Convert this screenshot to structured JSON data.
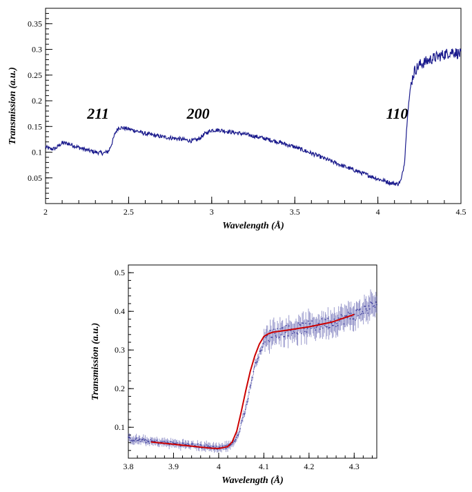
{
  "colors": {
    "data_series": "#1a1a8c",
    "fit_curve": "#cc0000",
    "axis": "#000000"
  },
  "chart_data": [
    {
      "type": "line",
      "title": "",
      "xlabel": "Wavelength (Å)",
      "ylabel": "Transmission (a.u.)",
      "xlim": [
        2.0,
        4.5
      ],
      "ylim": [
        0.0,
        0.38
      ],
      "x_ticks": [
        2,
        2.5,
        3,
        3.5,
        4,
        4.5
      ],
      "x_tick_labels": [
        "2",
        "2.5",
        "3",
        "3.5",
        "4",
        "4.5"
      ],
      "y_ticks": [
        0.05,
        0.1,
        0.15,
        0.2,
        0.25,
        0.3,
        0.35
      ],
      "y_tick_labels": [
        "0.05",
        "0.1",
        "0.15",
        "0.2",
        "0.25",
        "0.3",
        "0.35"
      ],
      "grid": false,
      "annotations": [
        {
          "text": "211",
          "x": 2.25,
          "y": 0.165
        },
        {
          "text": "200",
          "x": 2.85,
          "y": 0.165
        },
        {
          "text": "110",
          "x": 4.05,
          "y": 0.165
        }
      ],
      "series": [
        {
          "style": "noisy-line",
          "points": [
            [
              2.0,
              0.11
            ],
            [
              2.03,
              0.106
            ],
            [
              2.06,
              0.107
            ],
            [
              2.08,
              0.113
            ],
            [
              2.1,
              0.118
            ],
            [
              2.13,
              0.117
            ],
            [
              2.16,
              0.114
            ],
            [
              2.2,
              0.109
            ],
            [
              2.25,
              0.104
            ],
            [
              2.3,
              0.1
            ],
            [
              2.35,
              0.098
            ],
            [
              2.38,
              0.102
            ],
            [
              2.4,
              0.118
            ],
            [
              2.42,
              0.138
            ],
            [
              2.44,
              0.148
            ],
            [
              2.47,
              0.147
            ],
            [
              2.5,
              0.145
            ],
            [
              2.55,
              0.141
            ],
            [
              2.6,
              0.136
            ],
            [
              2.7,
              0.13
            ],
            [
              2.8,
              0.126
            ],
            [
              2.88,
              0.122
            ],
            [
              2.92,
              0.125
            ],
            [
              2.96,
              0.136
            ],
            [
              3.0,
              0.143
            ],
            [
              3.05,
              0.143
            ],
            [
              3.1,
              0.14
            ],
            [
              3.2,
              0.135
            ],
            [
              3.3,
              0.128
            ],
            [
              3.4,
              0.12
            ],
            [
              3.5,
              0.11
            ],
            [
              3.6,
              0.098
            ],
            [
              3.7,
              0.085
            ],
            [
              3.8,
              0.072
            ],
            [
              3.9,
              0.06
            ],
            [
              4.0,
              0.048
            ],
            [
              4.08,
              0.04
            ],
            [
              4.12,
              0.038
            ],
            [
              4.14,
              0.045
            ],
            [
              4.16,
              0.08
            ],
            [
              4.18,
              0.18
            ],
            [
              4.2,
              0.235
            ],
            [
              4.22,
              0.258
            ],
            [
              4.25,
              0.27
            ],
            [
              4.3,
              0.278
            ],
            [
              4.35,
              0.285
            ],
            [
              4.4,
              0.29
            ],
            [
              4.45,
              0.296
            ],
            [
              4.5,
              0.29
            ]
          ]
        }
      ]
    },
    {
      "type": "scatter",
      "title": "",
      "xlabel": "Wavelength (Å)",
      "ylabel": "Transmission (a.u.)",
      "xlim": [
        3.8,
        4.35
      ],
      "ylim": [
        0.02,
        0.52
      ],
      "x_ticks": [
        3.8,
        3.9,
        4.0,
        4.1,
        4.2,
        4.3
      ],
      "x_tick_labels": [
        "3.8",
        "3.9",
        "4",
        "4.1",
        "4.2",
        "4.3"
      ],
      "y_ticks": [
        0.1,
        0.2,
        0.3,
        0.4,
        0.5
      ],
      "y_tick_labels": [
        "0.1",
        "0.2",
        "0.3",
        "0.4",
        "0.5"
      ],
      "grid": false,
      "series": [
        {
          "style": "error-dots",
          "points": [
            [
              3.8,
              0.07
            ],
            [
              3.85,
              0.063
            ],
            [
              3.9,
              0.058
            ],
            [
              3.95,
              0.052
            ],
            [
              4.0,
              0.047
            ],
            [
              4.02,
              0.05
            ],
            [
              4.04,
              0.07
            ],
            [
              4.06,
              0.15
            ],
            [
              4.08,
              0.26
            ],
            [
              4.1,
              0.32
            ],
            [
              4.12,
              0.345
            ],
            [
              4.15,
              0.35
            ],
            [
              4.2,
              0.36
            ],
            [
              4.25,
              0.372
            ],
            [
              4.3,
              0.39
            ],
            [
              4.35,
              0.42
            ]
          ]
        },
        {
          "style": "fit-line",
          "points": [
            [
              3.85,
              0.062
            ],
            [
              3.9,
              0.056
            ],
            [
              3.95,
              0.05
            ],
            [
              3.98,
              0.046
            ],
            [
              4.0,
              0.045
            ],
            [
              4.02,
              0.05
            ],
            [
              4.03,
              0.062
            ],
            [
              4.04,
              0.09
            ],
            [
              4.05,
              0.14
            ],
            [
              4.06,
              0.195
            ],
            [
              4.07,
              0.245
            ],
            [
              4.08,
              0.285
            ],
            [
              4.09,
              0.315
            ],
            [
              4.1,
              0.335
            ],
            [
              4.11,
              0.342
            ],
            [
              4.12,
              0.346
            ],
            [
              4.15,
              0.351
            ],
            [
              4.2,
              0.36
            ],
            [
              4.25,
              0.372
            ],
            [
              4.3,
              0.392
            ]
          ]
        }
      ]
    }
  ]
}
